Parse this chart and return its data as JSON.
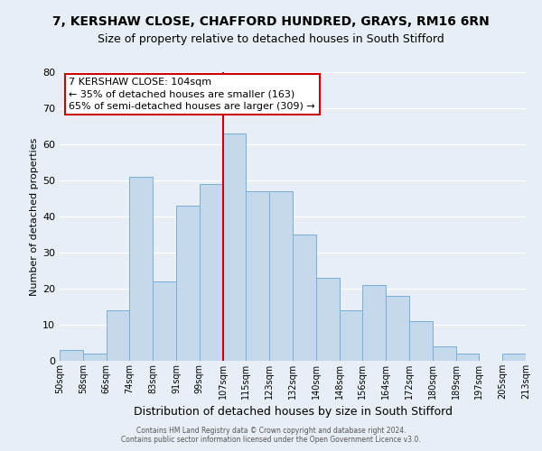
{
  "title": "7, KERSHAW CLOSE, CHAFFORD HUNDRED, GRAYS, RM16 6RN",
  "subtitle": "Size of property relative to detached houses in South Stifford",
  "xlabel": "Distribution of detached houses by size in South Stifford",
  "ylabel": "Number of detached properties",
  "footer_line1": "Contains HM Land Registry data © Crown copyright and database right 2024.",
  "footer_line2": "Contains public sector information licensed under the Open Government Licence v3.0.",
  "bin_labels": [
    "50sqm",
    "58sqm",
    "66sqm",
    "74sqm",
    "83sqm",
    "91sqm",
    "99sqm",
    "107sqm",
    "115sqm",
    "123sqm",
    "132sqm",
    "140sqm",
    "148sqm",
    "156sqm",
    "164sqm",
    "172sqm",
    "180sqm",
    "189sqm",
    "197sqm",
    "205sqm",
    "213sqm"
  ],
  "bar_heights": [
    3,
    2,
    14,
    51,
    22,
    43,
    49,
    63,
    47,
    47,
    35,
    23,
    14,
    21,
    18,
    11,
    4,
    2,
    0,
    2
  ],
  "bar_color": "#c6d9ec",
  "bar_edgecolor": "#7aaed0",
  "vline_x_index": 7,
  "vline_color": "#cc0000",
  "ylim": [
    0,
    80
  ],
  "yticks": [
    0,
    10,
    20,
    30,
    40,
    50,
    60,
    70,
    80
  ],
  "annotation_box_title": "7 KERSHAW CLOSE: 104sqm",
  "annotation_line1": "← 35% of detached houses are smaller (163)",
  "annotation_line2": "65% of semi-detached houses are larger (309) →",
  "annotation_box_facecolor": "#ffffff",
  "annotation_box_edgecolor": "#cc0000",
  "background_color": "#e8eef5",
  "grid_color": "#ffffff",
  "title_fontsize": 10,
  "subtitle_fontsize": 9,
  "ylabel_fontsize": 8,
  "xlabel_fontsize": 9,
  "ytick_fontsize": 8,
  "xtick_fontsize": 7
}
